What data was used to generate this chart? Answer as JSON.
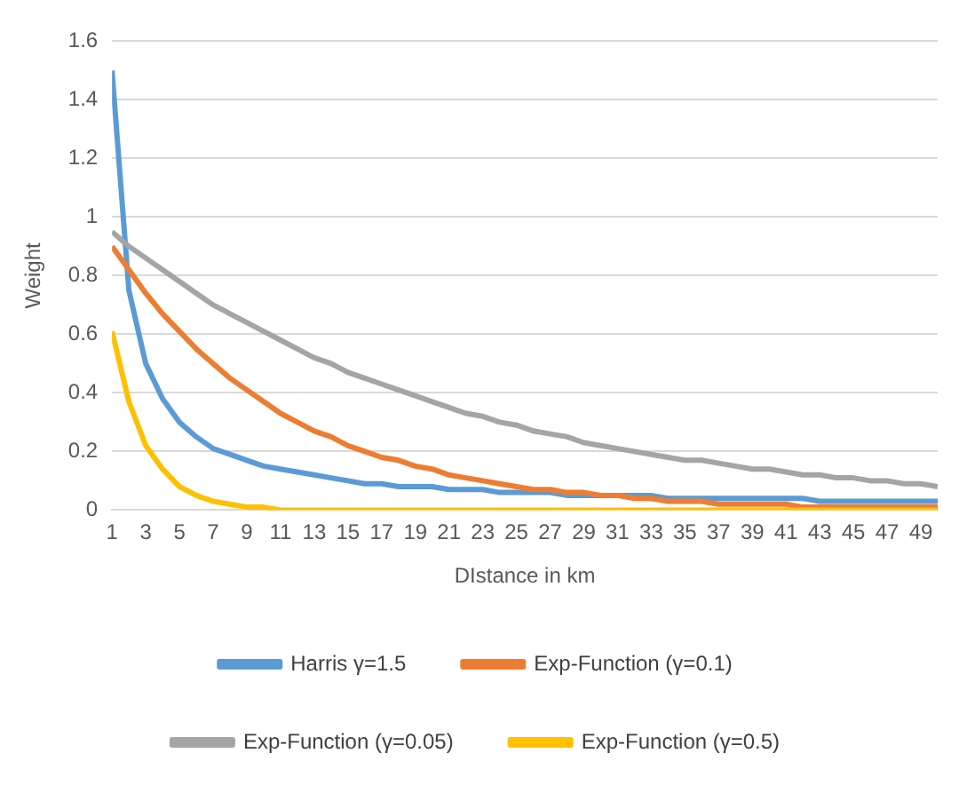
{
  "chart_data": {
    "type": "line",
    "xlabel": "DIstance in km",
    "ylabel": "Weight",
    "x": [
      1,
      2,
      3,
      4,
      5,
      6,
      7,
      8,
      9,
      10,
      11,
      12,
      13,
      14,
      15,
      16,
      17,
      18,
      19,
      20,
      21,
      22,
      23,
      24,
      25,
      26,
      27,
      28,
      29,
      30,
      31,
      32,
      33,
      34,
      35,
      36,
      37,
      38,
      39,
      40,
      41,
      42,
      43,
      44,
      45,
      46,
      47,
      48,
      49,
      50
    ],
    "xlim": [
      1,
      50
    ],
    "xticks": [
      1,
      3,
      5,
      7,
      9,
      11,
      13,
      15,
      17,
      19,
      21,
      23,
      25,
      27,
      29,
      31,
      33,
      35,
      37,
      39,
      41,
      43,
      45,
      47,
      49
    ],
    "series": [
      {
        "name": "Harris γ=1.5",
        "color": "#5b9bd5",
        "values": [
          1.5,
          0.75,
          0.5,
          0.38,
          0.3,
          0.25,
          0.21,
          0.19,
          0.17,
          0.15,
          0.14,
          0.13,
          0.12,
          0.11,
          0.1,
          0.09,
          0.09,
          0.08,
          0.08,
          0.08,
          0.07,
          0.07,
          0.07,
          0.06,
          0.06,
          0.06,
          0.06,
          0.05,
          0.05,
          0.05,
          0.05,
          0.05,
          0.05,
          0.04,
          0.04,
          0.04,
          0.04,
          0.04,
          0.04,
          0.04,
          0.04,
          0.04,
          0.03,
          0.03,
          0.03,
          0.03,
          0.03,
          0.03,
          0.03,
          0.03
        ]
      },
      {
        "name": "Exp-Function (γ=0.1)",
        "color": "#ed7d31",
        "values": [
          0.9,
          0.82,
          0.74,
          0.67,
          0.61,
          0.55,
          0.5,
          0.45,
          0.41,
          0.37,
          0.33,
          0.3,
          0.27,
          0.25,
          0.22,
          0.2,
          0.18,
          0.17,
          0.15,
          0.14,
          0.12,
          0.11,
          0.1,
          0.09,
          0.08,
          0.07,
          0.07,
          0.06,
          0.06,
          0.05,
          0.05,
          0.04,
          0.04,
          0.03,
          0.03,
          0.03,
          0.02,
          0.02,
          0.02,
          0.02,
          0.02,
          0.01,
          0.01,
          0.01,
          0.01,
          0.01,
          0.01,
          0.01,
          0.01,
          0.01
        ]
      },
      {
        "name": "Exp-Function (γ=0.05)",
        "color": "#a5a5a5",
        "values": [
          0.95,
          0.9,
          0.86,
          0.82,
          0.78,
          0.74,
          0.7,
          0.67,
          0.64,
          0.61,
          0.58,
          0.55,
          0.52,
          0.5,
          0.47,
          0.45,
          0.43,
          0.41,
          0.39,
          0.37,
          0.35,
          0.33,
          0.32,
          0.3,
          0.29,
          0.27,
          0.26,
          0.25,
          0.23,
          0.22,
          0.21,
          0.2,
          0.19,
          0.18,
          0.17,
          0.17,
          0.16,
          0.15,
          0.14,
          0.14,
          0.13,
          0.12,
          0.12,
          0.11,
          0.11,
          0.1,
          0.1,
          0.09,
          0.09,
          0.08
        ]
      },
      {
        "name": "Exp-Function (γ=0.5)",
        "color": "#ffc000",
        "values": [
          0.61,
          0.37,
          0.22,
          0.14,
          0.08,
          0.05,
          0.03,
          0.02,
          0.01,
          0.01,
          0,
          0,
          0,
          0,
          0,
          0,
          0,
          0,
          0,
          0,
          0,
          0,
          0,
          0,
          0,
          0,
          0,
          0,
          0,
          0,
          0,
          0,
          0,
          0,
          0,
          0,
          0,
          0,
          0,
          0,
          0,
          0,
          0,
          0,
          0,
          0,
          0,
          0,
          0,
          0
        ]
      }
    ],
    "ylim": [
      0,
      1.6
    ],
    "yticks": [
      0,
      0.2,
      0.4,
      0.6,
      0.8,
      1,
      1.2,
      1.4,
      1.6
    ],
    "grid": "y",
    "legend": "bottom",
    "marker": "none",
    "line_style": "solid"
  }
}
